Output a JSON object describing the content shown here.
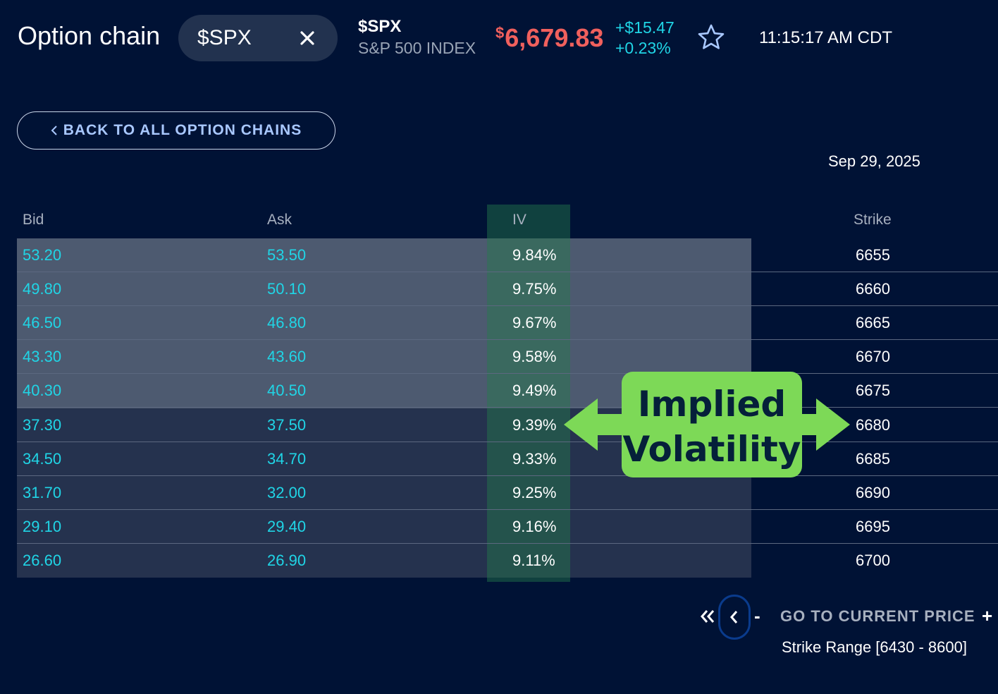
{
  "header": {
    "title": "Option chain",
    "symbol_input": "$SPX",
    "quote": {
      "symbol": "$SPX",
      "name": "S&P 500 INDEX",
      "currency": "$",
      "price": "6,679.83",
      "change": "+$15.47",
      "change_pct": "+0.23%"
    },
    "time": "11:15:17 AM CDT"
  },
  "back_button": "BACK TO ALL OPTION CHAINS",
  "expiration": "Sep 29, 2025",
  "table": {
    "columns": {
      "bid": "Bid",
      "ask": "Ask",
      "iv": "IV",
      "strike": "Strike"
    },
    "rows": [
      {
        "bid": "53.20",
        "ask": "53.50",
        "iv": "9.84%",
        "strike": "6655",
        "in_the_money": true
      },
      {
        "bid": "49.80",
        "ask": "50.10",
        "iv": "9.75%",
        "strike": "6660",
        "in_the_money": true
      },
      {
        "bid": "46.50",
        "ask": "46.80",
        "iv": "9.67%",
        "strike": "6665",
        "in_the_money": true
      },
      {
        "bid": "43.30",
        "ask": "43.60",
        "iv": "9.58%",
        "strike": "6670",
        "in_the_money": true
      },
      {
        "bid": "40.30",
        "ask": "40.50",
        "iv": "9.49%",
        "strike": "6675",
        "in_the_money": true
      },
      {
        "bid": "37.30",
        "ask": "37.50",
        "iv": "9.39%",
        "strike": "6680",
        "in_the_money": false
      },
      {
        "bid": "34.50",
        "ask": "34.70",
        "iv": "9.33%",
        "strike": "6685",
        "in_the_money": false
      },
      {
        "bid": "31.70",
        "ask": "32.00",
        "iv": "9.25%",
        "strike": "6690",
        "in_the_money": false
      },
      {
        "bid": "29.10",
        "ask": "29.40",
        "iv": "9.16%",
        "strike": "6695",
        "in_the_money": false
      },
      {
        "bid": "26.60",
        "ask": "26.90",
        "iv": "9.11%",
        "strike": "6700",
        "in_the_money": false
      }
    ]
  },
  "callout": {
    "line1": "Implied",
    "line2": "Volatility"
  },
  "pagination": {
    "minus": "-",
    "goto": "GO TO CURRENT PRICE",
    "plus": "+",
    "range": "Strike Range [6430 - 8600]"
  },
  "colors": {
    "background": "#001235",
    "price_down_red": "#f0605d",
    "change_cyan": "#20d5e6",
    "callout_green": "#7dd957"
  },
  "icons": [
    "close-icon",
    "star-icon",
    "chevron-left-icon",
    "double-chevron-left-icon"
  ]
}
